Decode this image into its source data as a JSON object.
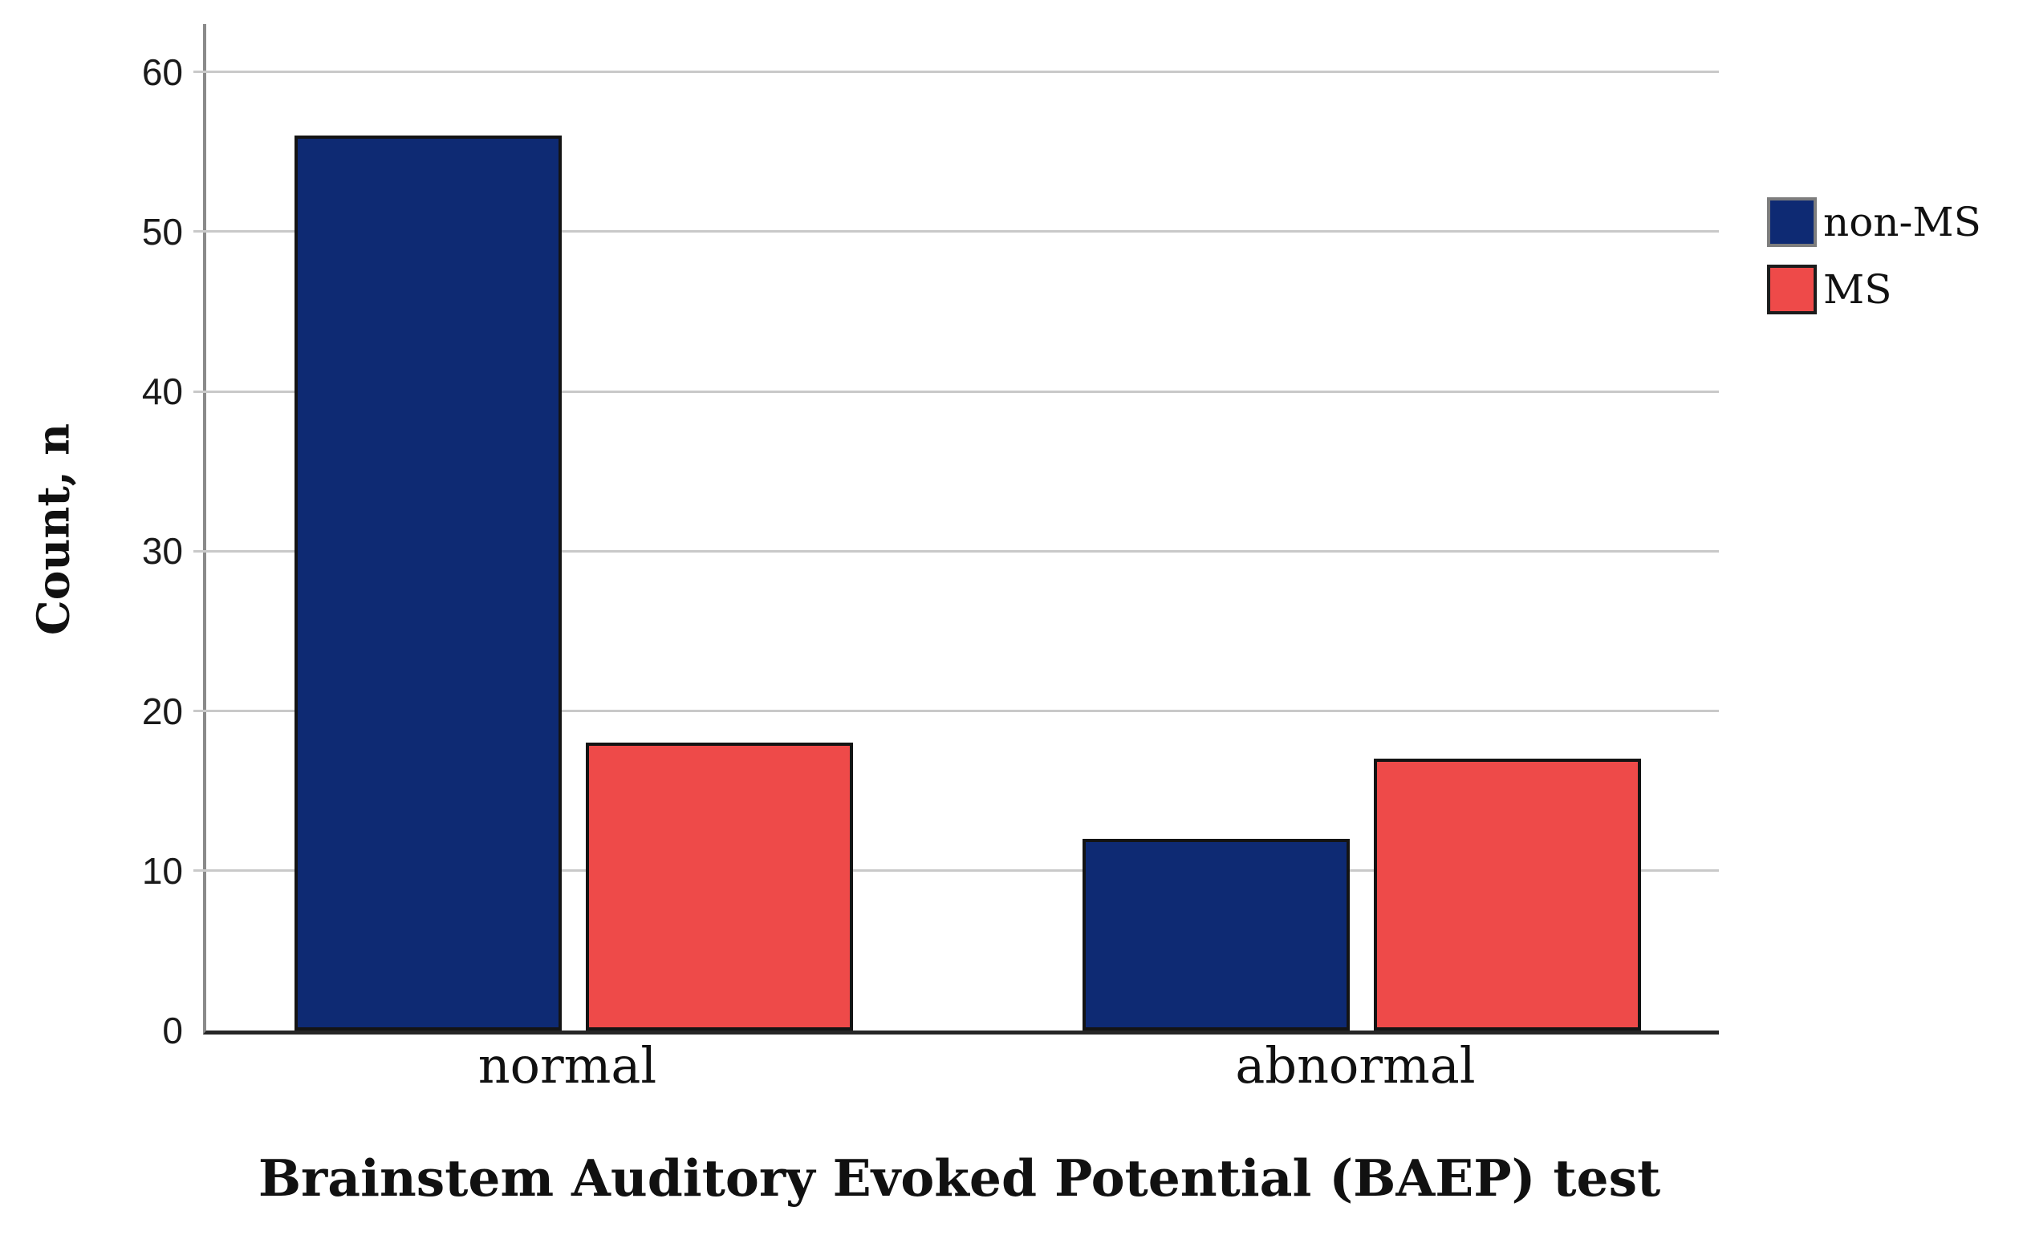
{
  "chart_data": {
    "type": "bar",
    "title": "",
    "xlabel": "Brainstem Auditory Evoked Potential (BAEP) test",
    "ylabel": "Count, n",
    "categories": [
      "normal",
      "abnormal"
    ],
    "series": [
      {
        "name": "non-MS",
        "color": "#0e2a73",
        "swatch_border": "#7d7d7d",
        "values": [
          56,
          12
        ]
      },
      {
        "name": "MS",
        "color": "#ee4a49",
        "swatch_border": "#1c1c1c",
        "values": [
          18,
          17
        ]
      }
    ],
    "y_ticks": [
      0,
      10,
      20,
      30,
      40,
      50,
      60
    ],
    "ylim": [
      0,
      63
    ],
    "grid": true,
    "gridline_color": "#c9c9c9",
    "axis_line_color": "#8a8a8a",
    "baseline_color": "#262626",
    "bar_border_color": "#141414",
    "legend_position": "right"
  }
}
